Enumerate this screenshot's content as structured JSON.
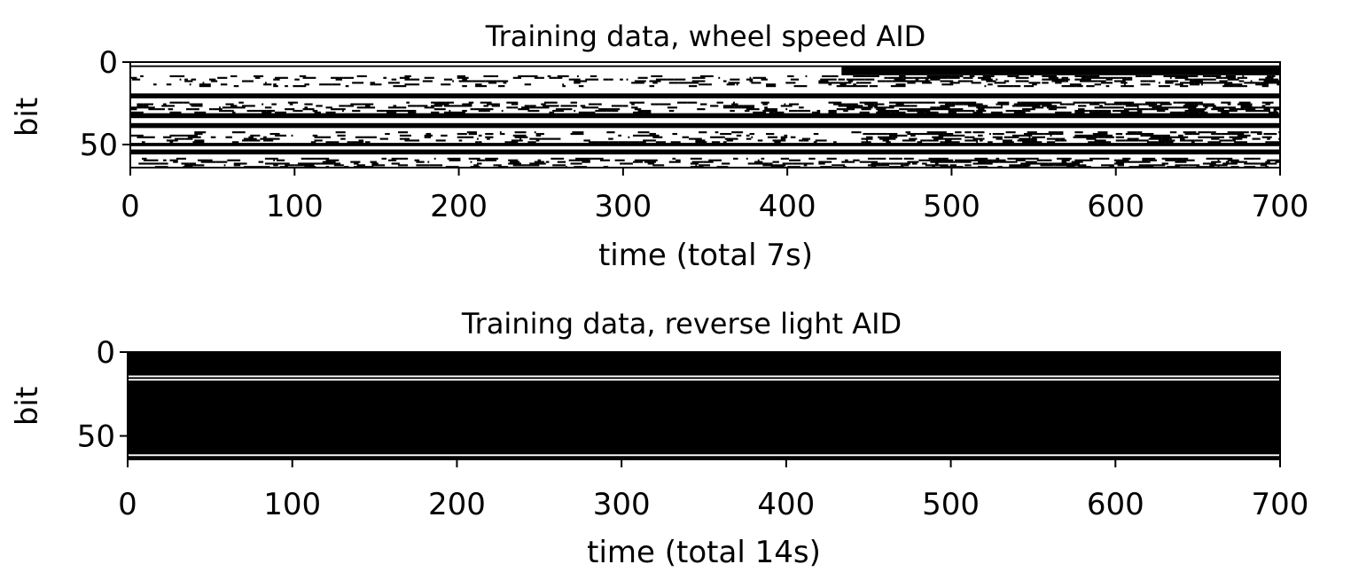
{
  "chart_data": [
    {
      "type": "heatmap",
      "title": "Training data, wheel speed AID",
      "xlabel": "time (total 7s)",
      "ylabel": "bit",
      "xlim": [
        0,
        700
      ],
      "ylim": [
        0,
        64
      ],
      "y_inverted": true,
      "x_ticks": [
        "0",
        "100",
        "200",
        "300",
        "400",
        "500",
        "600",
        "700"
      ],
      "y_ticks": [
        "0",
        "50"
      ],
      "colormap": "binary (white = 0, black = 1)",
      "colors": {
        "zero": "#ffffff",
        "one": "#000000"
      },
      "rows": [
        {
          "bits": [
            0,
            1
          ],
          "pattern": "constant",
          "value": 0
        },
        {
          "bits": [
            2,
            2
          ],
          "pattern": "constant",
          "value": 1
        },
        {
          "bits": [
            3,
            7
          ],
          "pattern": "segments",
          "segments": [
            [
              0,
              433,
              0
            ],
            [
              433,
              700,
              1
            ]
          ]
        },
        {
          "bits": [
            8,
            14
          ],
          "pattern": "random",
          "density_before_433": 0.25,
          "density_after_433": 0.5
        },
        {
          "bits": [
            15,
            18
          ],
          "pattern": "constant",
          "value": 0
        },
        {
          "bits": [
            19,
            21
          ],
          "pattern": "constant",
          "value": 1
        },
        {
          "bits": [
            22,
            23
          ],
          "pattern": "constant",
          "value": 0
        },
        {
          "bits": [
            24,
            30
          ],
          "pattern": "random",
          "density_before_433": 0.3,
          "density_after_433": 0.55
        },
        {
          "bits": [
            31,
            33
          ],
          "pattern": "constant",
          "value": 1
        },
        {
          "bits": [
            34,
            36
          ],
          "pattern": "constant",
          "value": 0
        },
        {
          "bits": [
            37,
            39
          ],
          "pattern": "constant",
          "value": 1
        },
        {
          "bits": [
            40,
            41
          ],
          "pattern": "constant",
          "value": 0
        },
        {
          "bits": [
            42,
            48
          ],
          "pattern": "random",
          "density_before_443": 0.25,
          "density_after_443": 0.5
        },
        {
          "bits": [
            49,
            50
          ],
          "pattern": "constant",
          "value": 1
        },
        {
          "bits": [
            51,
            52
          ],
          "pattern": "constant",
          "value": 0
        },
        {
          "bits": [
            53,
            55
          ],
          "pattern": "constant",
          "value": 1
        },
        {
          "bits": [
            56,
            57
          ],
          "pattern": "constant",
          "value": 0
        },
        {
          "bits": [
            58,
            63
          ],
          "pattern": "random",
          "density_before_443": 0.3,
          "density_after_443": 0.55
        }
      ]
    },
    {
      "type": "heatmap",
      "title": "Training data, reverse light AID",
      "xlabel": "time (total 14s)",
      "ylabel": "bit",
      "xlim": [
        0,
        700
      ],
      "ylim": [
        0,
        64
      ],
      "y_inverted": true,
      "x_ticks": [
        "0",
        "100",
        "200",
        "300",
        "400",
        "500",
        "600",
        "700"
      ],
      "y_ticks": [
        "0",
        "50"
      ],
      "colormap": "binary (white = 0, black = 1)",
      "colors": {
        "zero": "#ffffff",
        "one": "#000000"
      },
      "rows": [
        {
          "bits": [
            0,
            13
          ],
          "pattern": "constant",
          "value": 1
        },
        {
          "bits": [
            14,
            14
          ],
          "pattern": "constant",
          "value": 0
        },
        {
          "bits": [
            15,
            15
          ],
          "pattern": "constant",
          "value": 1
        },
        {
          "bits": [
            16,
            16
          ],
          "pattern": "constant",
          "value": 0
        },
        {
          "bits": [
            17,
            60
          ],
          "pattern": "constant",
          "value": 1
        },
        {
          "bits": [
            61,
            61
          ],
          "pattern": "constant",
          "value": 0
        },
        {
          "bits": [
            62,
            63
          ],
          "pattern": "constant",
          "value": 1
        }
      ]
    }
  ]
}
